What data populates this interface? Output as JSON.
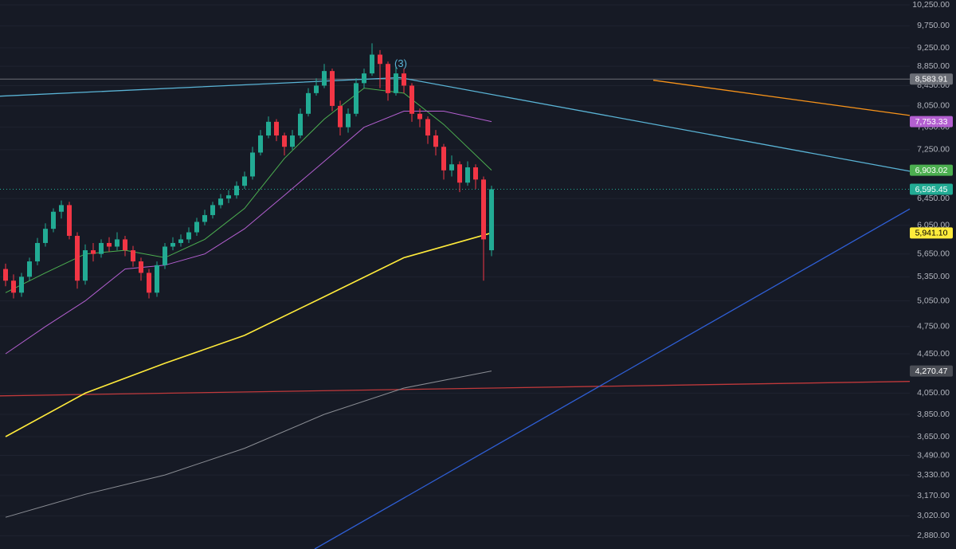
{
  "chart_data": {
    "type": "candlestick",
    "log": true,
    "grid": true,
    "background": "#161a25",
    "xlim": [
      -0.7,
      113.5
    ],
    "ylim": [
      2790,
      10370
    ],
    "yticks": [
      {
        "value": 10250,
        "label": "10,250.00"
      },
      {
        "value": 9750,
        "label": "9,750.00"
      },
      {
        "value": 9250,
        "label": "9,250.00"
      },
      {
        "value": 8850,
        "label": "8,850.00"
      },
      {
        "value": 8450,
        "label": "8,450.00"
      },
      {
        "value": 8050,
        "label": "8,050.00"
      },
      {
        "value": 7650,
        "label": "7,650.00"
      },
      {
        "value": 7250,
        "label": "7,250.00"
      },
      {
        "value": 6450,
        "label": "6,450.00"
      },
      {
        "value": 6050,
        "label": "6,050.00"
      },
      {
        "value": 5650,
        "label": "5,650.00"
      },
      {
        "value": 5350,
        "label": "5,350.00"
      },
      {
        "value": 5050,
        "label": "5,050.00"
      },
      {
        "value": 4750,
        "label": "4,750.00"
      },
      {
        "value": 4450,
        "label": "4,450.00"
      },
      {
        "value": 4050,
        "label": "4,050.00"
      },
      {
        "value": 3850,
        "label": "3,850.00"
      },
      {
        "value": 3650,
        "label": "3,650.00"
      },
      {
        "value": 3490,
        "label": "3,490.00"
      },
      {
        "value": 3330,
        "label": "3,330.00"
      },
      {
        "value": 3170,
        "label": "3,170.00"
      },
      {
        "value": 3020,
        "label": "3,020.00"
      },
      {
        "value": 2880,
        "label": "2,880.00"
      }
    ],
    "up_color": "#22ab94",
    "down_color": "#f23645",
    "open": [
      5450,
      5300,
      5150,
      5350,
      5550,
      5800,
      6000,
      6250,
      6350,
      5900,
      5300,
      5700,
      5650,
      5800,
      5750,
      5850,
      5700,
      5550,
      5400,
      5150,
      5500,
      5750,
      5800,
      5850,
      5950,
      6100,
      6200,
      6350,
      6450,
      6500,
      6650,
      6800,
      7200,
      7500,
      7750,
      7500,
      7300,
      7500,
      7900,
      8300,
      8450,
      8750,
      8050,
      7650,
      7900,
      8500,
      8700,
      9100,
      8900,
      8300,
      8700,
      8450,
      7900,
      7800,
      7500,
      7300,
      6900,
      7000,
      6700,
      6950,
      6750,
      5700
    ],
    "high": [
      5520,
      5380,
      5400,
      5600,
      5870,
      6080,
      6300,
      6420,
      6400,
      5950,
      5780,
      5800,
      5850,
      5880,
      5950,
      5900,
      5760,
      5600,
      5450,
      5550,
      5800,
      5880,
      5920,
      6020,
      6160,
      6280,
      6400,
      6520,
      6580,
      6720,
      6880,
      7300,
      7600,
      7850,
      7800,
      7550,
      7600,
      8000,
      8400,
      8600,
      8900,
      8800,
      8150,
      8000,
      8600,
      8800,
      9350,
      9200,
      8950,
      8850,
      8800,
      8500,
      8000,
      7850,
      7600,
      7350,
      7150,
      7050,
      7050,
      7000,
      6800,
      6650
    ],
    "low": [
      5230,
      5080,
      5100,
      5300,
      5500,
      5750,
      5950,
      6150,
      5850,
      5200,
      5250,
      5550,
      5600,
      5680,
      5700,
      5620,
      5480,
      5300,
      5080,
      5100,
      5450,
      5700,
      5750,
      5800,
      5900,
      6050,
      6150,
      6300,
      6380,
      6450,
      6600,
      6750,
      7150,
      7450,
      7400,
      7150,
      7250,
      7450,
      7850,
      8250,
      8400,
      7950,
      7500,
      7550,
      7850,
      8400,
      8650,
      8400,
      8150,
      8250,
      8300,
      7750,
      7650,
      7350,
      7150,
      6750,
      6800,
      6550,
      6650,
      6600,
      5300,
      5620
    ],
    "close": [
      5300,
      5150,
      5350,
      5550,
      5800,
      6000,
      6250,
      6350,
      5900,
      5300,
      5700,
      5650,
      5800,
      5750,
      5850,
      5700,
      5550,
      5400,
      5150,
      5500,
      5750,
      5800,
      5850,
      5950,
      6100,
      6200,
      6350,
      6450,
      6500,
      6650,
      6800,
      7200,
      7500,
      7750,
      7500,
      7300,
      7500,
      7900,
      8300,
      8450,
      8750,
      8050,
      7650,
      7900,
      8500,
      8700,
      9100,
      8900,
      8300,
      8700,
      8450,
      7900,
      7800,
      7500,
      7300,
      6900,
      7000,
      6700,
      6950,
      6750,
      5850,
      6595.45
    ],
    "moving_averages": [
      {
        "color": "#4caf50",
        "x": [
          0,
          5,
          10,
          15,
          20,
          25,
          30,
          35,
          40,
          45,
          50,
          55,
          61
        ],
        "values": [
          5150,
          5400,
          5650,
          5700,
          5600,
          5850,
          6300,
          7100,
          7800,
          8400,
          8300,
          7700,
          6903.02
        ]
      },
      {
        "color": "#b35fd0",
        "x": [
          0,
          5,
          10,
          15,
          20,
          25,
          30,
          35,
          40,
          45,
          50,
          55,
          61
        ],
        "values": [
          4450,
          4750,
          5050,
          5450,
          5500,
          5650,
          6000,
          6500,
          7050,
          7650,
          7950,
          7950,
          7753.33
        ]
      },
      {
        "color": "#ffeb3b",
        "x": [
          0,
          10,
          20,
          30,
          40,
          50,
          61
        ],
        "values": [
          3650,
          4050,
          4350,
          4650,
          5100,
          5600,
          5941.1
        ]
      },
      {
        "color": "#8a8d94",
        "x": [
          0,
          10,
          20,
          30,
          40,
          50,
          61
        ],
        "values": [
          3010,
          3180,
          3330,
          3550,
          3850,
          4100,
          4270.47
        ]
      }
    ],
    "trend_lines": [
      {
        "color": "#5ab4d6",
        "x": [
          -0.7,
          49.5,
          113.5
        ],
        "values": [
          8240,
          8614,
          6885
        ]
      },
      {
        "color": "#f7931a",
        "x": [
          81.3,
          113.5
        ],
        "values": [
          8560,
          7868
        ]
      },
      {
        "color": "#c0393b",
        "x": [
          -0.7,
          113.5
        ],
        "values": [
          4024,
          4165
        ]
      },
      {
        "color": "#2f5fd6",
        "x": [
          38.8,
          113.5
        ],
        "values": [
          2790,
          6292
        ]
      }
    ],
    "price_labels": [
      {
        "value": 8583.91,
        "label": "8,583.91",
        "color": "#6b6e76",
        "text_color": "#ffffff",
        "line": "solid"
      },
      {
        "value": 7753.33,
        "label": "7,753.33",
        "color": "#b35fd0",
        "text_color": "#ffffff"
      },
      {
        "value": 6903.02,
        "label": "6,903.02",
        "color": "#4caf50",
        "text_color": "#ffffff"
      },
      {
        "value": 6595.45,
        "label": "6,595.45",
        "color": "#22ab94",
        "text_color": "#ffffff",
        "line": "dotted"
      },
      {
        "value": 5941.1,
        "label": "5,941.10",
        "color": "#ffeb3b",
        "text_color": "#000000"
      },
      {
        "value": 4270.47,
        "label": "4,270.47",
        "color": "#4a4d55",
        "text_color": "#ffffff"
      }
    ],
    "annotations": [
      {
        "text": "(3)",
        "x": 49.6,
        "y": 8894,
        "color": "#5ab4d6"
      }
    ]
  }
}
